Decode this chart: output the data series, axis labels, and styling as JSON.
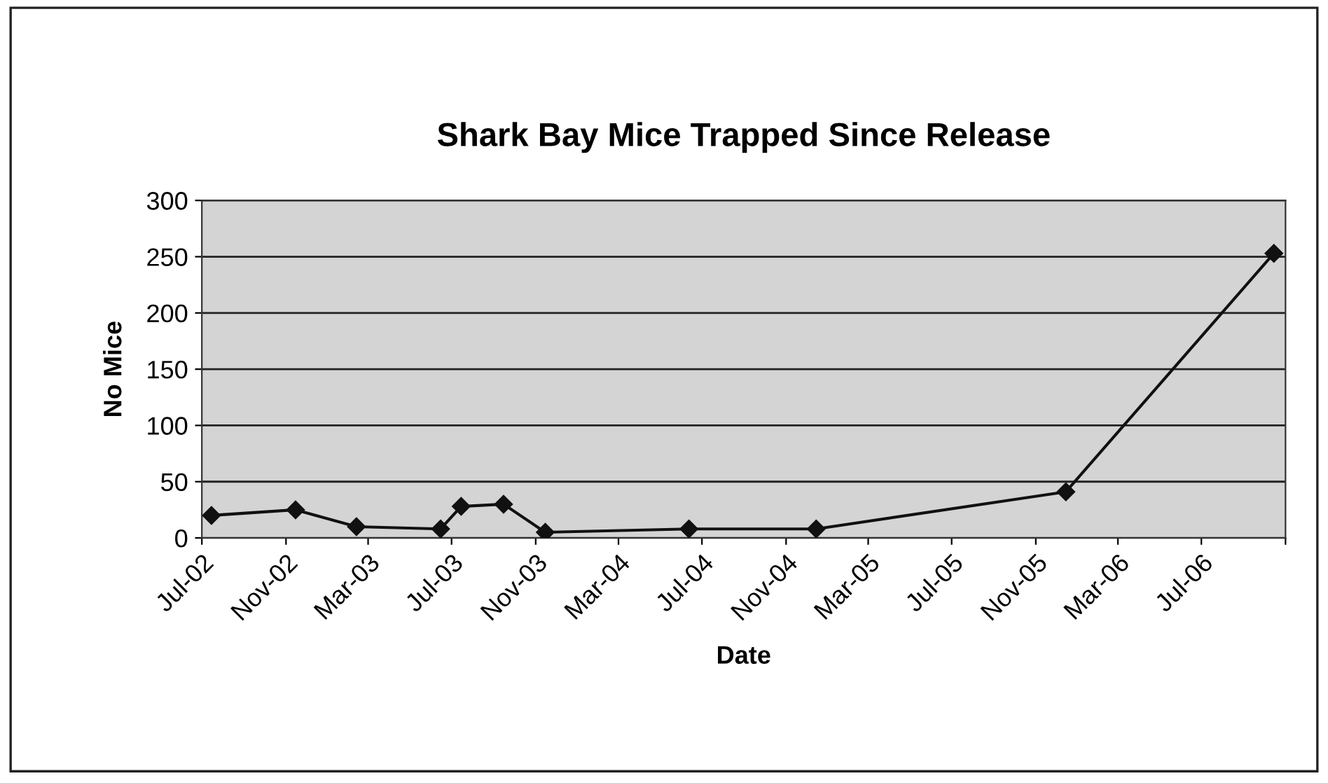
{
  "chart_data": {
    "type": "line",
    "title": "Shark Bay Mice Trapped Since Release",
    "xlabel": "Date",
    "ylabel": "No Mice",
    "x": [
      "2002-07-15",
      "2002-11-15",
      "2003-02-12",
      "2003-06-15",
      "2003-07-15",
      "2003-09-15",
      "2003-11-15",
      "2004-06-12",
      "2004-12-15",
      "2005-12-15",
      "2006-10-15"
    ],
    "series": [
      {
        "color": "#111111",
        "values": [
          20,
          25,
          10,
          8,
          28,
          30,
          5,
          8,
          8,
          41,
          253
        ]
      }
    ],
    "xlim": [
      "2002-07-01",
      "2006-11-01"
    ],
    "xticks": [
      {
        "value": "2002-07-01",
        "label": "Jul-02"
      },
      {
        "value": "2002-11-01",
        "label": "Nov-02"
      },
      {
        "value": "2003-03-01",
        "label": "Mar-03"
      },
      {
        "value": "2003-07-01",
        "label": "Jul-03"
      },
      {
        "value": "2003-11-01",
        "label": "Nov-03"
      },
      {
        "value": "2004-03-01",
        "label": "Mar-04"
      },
      {
        "value": "2004-07-01",
        "label": "Jul-04"
      },
      {
        "value": "2004-11-01",
        "label": "Nov-04"
      },
      {
        "value": "2005-03-01",
        "label": "Mar-05"
      },
      {
        "value": "2005-07-01",
        "label": "Jul-05"
      },
      {
        "value": "2005-11-01",
        "label": "Nov-05"
      },
      {
        "value": "2006-03-01",
        "label": "Mar-06"
      },
      {
        "value": "2006-07-01",
        "label": "Jul-06"
      },
      {
        "value": "2006-11-01",
        "label": null
      }
    ],
    "ylim": [
      0,
      300
    ],
    "yticks": [
      0,
      50,
      100,
      150,
      200,
      250,
      300
    ],
    "grid": "y",
    "marker": "diamond",
    "line_style": "solid",
    "legend": false
  }
}
